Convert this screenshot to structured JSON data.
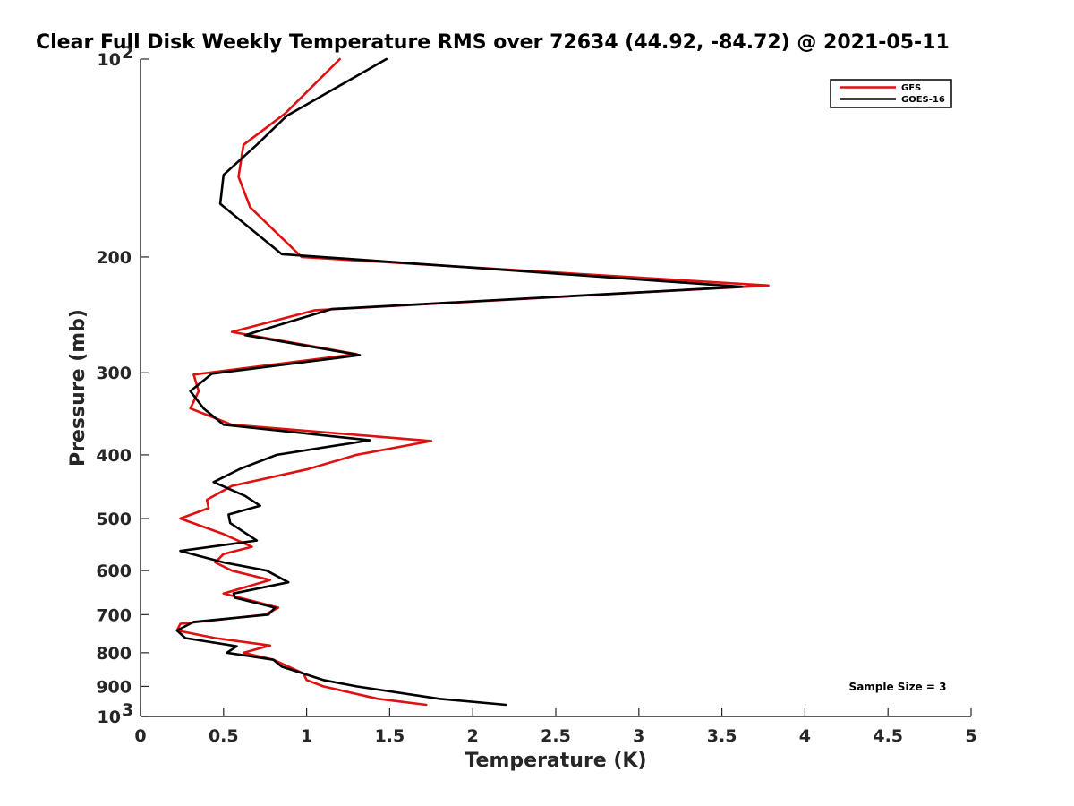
{
  "chart_data": {
    "type": "line",
    "title": "Clear Full Disk Weekly Temperature RMS over 72634 (44.92, -84.72) @ 2021-05-11",
    "xlabel": "Temperature (K)",
    "ylabel": "Pressure (mb)",
    "xlim": [
      0,
      5
    ],
    "ylim": [
      100,
      1000
    ],
    "yscale": "log",
    "y_reversed": true,
    "grid": false,
    "legend_position": "top-right",
    "x_ticks": [
      {
        "value": 0,
        "label": "0"
      },
      {
        "value": 0.5,
        "label": "0.5"
      },
      {
        "value": 1,
        "label": "1"
      },
      {
        "value": 1.5,
        "label": "1.5"
      },
      {
        "value": 2,
        "label": "2"
      },
      {
        "value": 2.5,
        "label": "2.5"
      },
      {
        "value": 3,
        "label": "3"
      },
      {
        "value": 3.5,
        "label": "3.5"
      },
      {
        "value": 4,
        "label": "4"
      },
      {
        "value": 4.5,
        "label": "4.5"
      },
      {
        "value": 5,
        "label": "5"
      }
    ],
    "y_ticks": [
      {
        "value": 100,
        "base": "10",
        "exp": "2"
      },
      {
        "value": 200,
        "label": "200"
      },
      {
        "value": 300,
        "label": "300"
      },
      {
        "value": 400,
        "label": "400"
      },
      {
        "value": 500,
        "label": "500"
      },
      {
        "value": 600,
        "label": "600"
      },
      {
        "value": 700,
        "label": "700"
      },
      {
        "value": 800,
        "label": "800"
      },
      {
        "value": 900,
        "label": "900"
      },
      {
        "value": 1000,
        "base": "10",
        "exp": "3"
      }
    ],
    "series": [
      {
        "name": "GFS",
        "color": "#e01010",
        "points": [
          [
            1.2,
            100
          ],
          [
            0.87,
            121
          ],
          [
            0.62,
            135
          ],
          [
            0.59,
            151
          ],
          [
            0.66,
            168
          ],
          [
            0.97,
            200
          ],
          [
            3.78,
            221
          ],
          [
            1.05,
            241
          ],
          [
            0.55,
            260
          ],
          [
            1.3,
            281
          ],
          [
            0.32,
            302
          ],
          [
            0.35,
            320
          ],
          [
            0.3,
            340
          ],
          [
            0.55,
            360
          ],
          [
            1.75,
            381
          ],
          [
            1.3,
            400
          ],
          [
            1.0,
            421
          ],
          [
            0.55,
            446
          ],
          [
            0.4,
            468
          ],
          [
            0.41,
            482
          ],
          [
            0.24,
            500
          ],
          [
            0.5,
            528
          ],
          [
            0.67,
            552
          ],
          [
            0.5,
            566
          ],
          [
            0.45,
            583
          ],
          [
            0.55,
            600
          ],
          [
            0.78,
            620
          ],
          [
            0.5,
            650
          ],
          [
            0.83,
            683
          ],
          [
            0.75,
            700
          ],
          [
            0.24,
            723
          ],
          [
            0.22,
            740
          ],
          [
            0.45,
            760
          ],
          [
            0.78,
            780
          ],
          [
            0.62,
            800
          ],
          [
            0.8,
            820
          ],
          [
            0.98,
            860
          ],
          [
            1.0,
            880
          ],
          [
            1.1,
            900
          ],
          [
            1.43,
            940
          ],
          [
            1.72,
            960
          ]
        ]
      },
      {
        "name": "GOES-16",
        "color": "#000000",
        "points": [
          [
            1.48,
            100
          ],
          [
            0.88,
            122
          ],
          [
            0.7,
            135
          ],
          [
            0.5,
            150
          ],
          [
            0.48,
            166
          ],
          [
            0.85,
            198
          ],
          [
            3.62,
            222
          ],
          [
            1.15,
            240
          ],
          [
            0.63,
            263
          ],
          [
            1.32,
            282
          ],
          [
            0.43,
            301
          ],
          [
            0.3,
            320
          ],
          [
            0.38,
            340
          ],
          [
            0.5,
            360
          ],
          [
            1.38,
            380
          ],
          [
            0.82,
            400
          ],
          [
            0.6,
            420
          ],
          [
            0.44,
            440
          ],
          [
            0.63,
            462
          ],
          [
            0.72,
            478
          ],
          [
            0.53,
            493
          ],
          [
            0.54,
            508
          ],
          [
            0.7,
            540
          ],
          [
            0.24,
            560
          ],
          [
            0.5,
            583
          ],
          [
            0.76,
            600
          ],
          [
            0.89,
            625
          ],
          [
            0.56,
            650
          ],
          [
            0.57,
            660
          ],
          [
            0.81,
            683
          ],
          [
            0.77,
            700
          ],
          [
            0.32,
            718
          ],
          [
            0.22,
            740
          ],
          [
            0.27,
            760
          ],
          [
            0.58,
            782
          ],
          [
            0.52,
            800
          ],
          [
            0.8,
            820
          ],
          [
            0.85,
            840
          ],
          [
            1.1,
            880
          ],
          [
            1.3,
            900
          ],
          [
            1.8,
            940
          ],
          [
            2.2,
            960
          ]
        ]
      }
    ],
    "annotations": [
      {
        "text": "Sample Size = 3"
      }
    ]
  }
}
